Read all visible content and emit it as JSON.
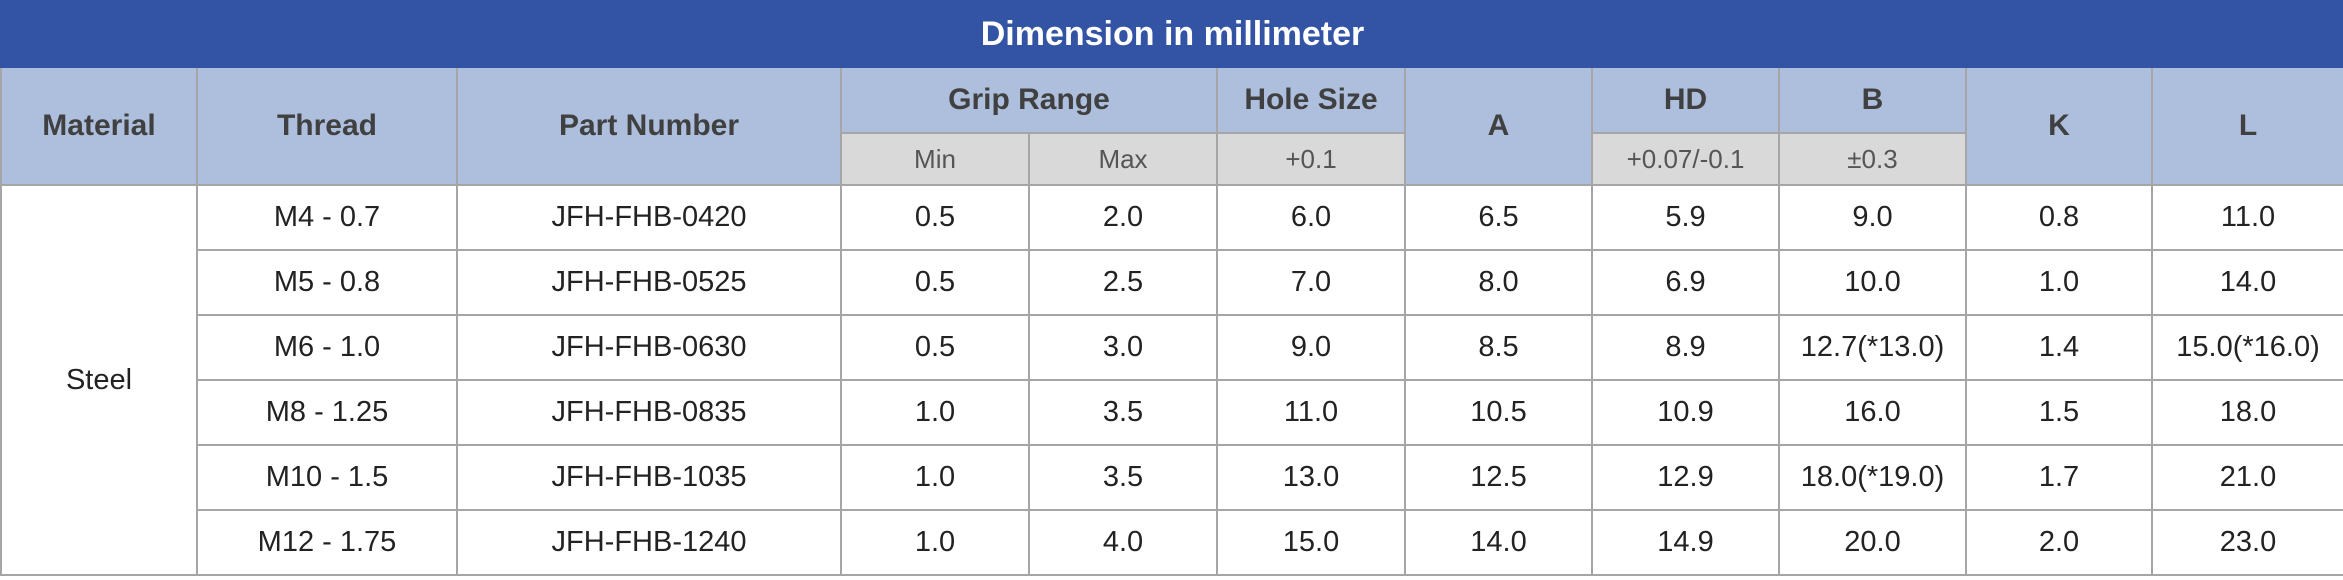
{
  "title": "Dimension in millimeter",
  "header": {
    "material": "Material",
    "thread": "Thread",
    "part_number": "Part Number",
    "grip_range": "Grip Range",
    "grip_min": "Min",
    "grip_max": "Max",
    "hole_size": "Hole Size",
    "hole_tolerance": "+0.1",
    "a": "A",
    "hd": "HD",
    "hd_tolerance": "+0.07/-0.1",
    "b": "B",
    "b_tolerance": "±0.3",
    "k": "K",
    "l": "L"
  },
  "material": "Steel",
  "rows": [
    [
      "M4 - 0.7",
      "JFH-FHB-0420",
      "0.5",
      "2.0",
      "6.0",
      "6.5",
      "5.9",
      "9.0",
      "0.8",
      "11.0"
    ],
    [
      "M5 - 0.8",
      "JFH-FHB-0525",
      "0.5",
      "2.5",
      "7.0",
      "8.0",
      "6.9",
      "10.0",
      "1.0",
      "14.0"
    ],
    [
      "M6 - 1.0",
      "JFH-FHB-0630",
      "0.5",
      "3.0",
      "9.0",
      "8.5",
      "8.9",
      "12.7(*13.0)",
      "1.4",
      "15.0(*16.0)"
    ],
    [
      "M8 - 1.25",
      "JFH-FHB-0835",
      "1.0",
      "3.5",
      "11.0",
      "10.5",
      "10.9",
      "16.0",
      "1.5",
      "18.0"
    ],
    [
      "M10 - 1.5",
      "JFH-FHB-1035",
      "1.0",
      "3.5",
      "13.0",
      "12.5",
      "12.9",
      "18.0(*19.0)",
      "1.7",
      "21.0"
    ],
    [
      "M12 - 1.75",
      "JFH-FHB-1240",
      "1.0",
      "4.0",
      "15.0",
      "14.0",
      "14.9",
      "20.0",
      "2.0",
      "23.0"
    ]
  ]
}
